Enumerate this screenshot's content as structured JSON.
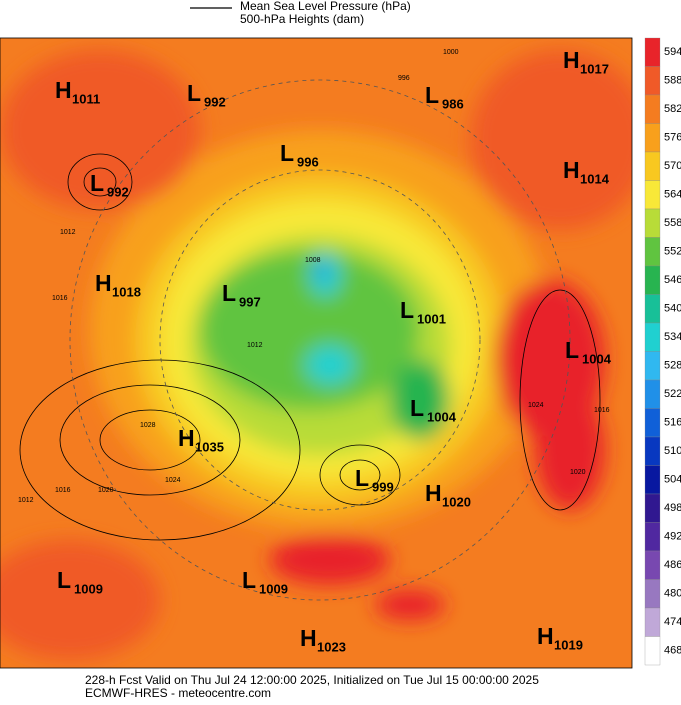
{
  "legend": {
    "line_label": "Mean Sea Level Pressure (hPa)",
    "fill_label": "500-hPa Heights (dam)"
  },
  "centers": [
    {
      "letter": "H",
      "value": 1017
    },
    {
      "letter": "H",
      "value": 1011
    },
    {
      "letter": "L",
      "value": 992
    },
    {
      "letter": "L",
      "value": 986
    },
    {
      "letter": "L",
      "value": 996
    },
    {
      "letter": "L",
      "value": 992
    },
    {
      "letter": "H",
      "value": 1014
    },
    {
      "letter": "H",
      "value": 1018
    },
    {
      "letter": "L",
      "value": 997
    },
    {
      "letter": "L",
      "value": 1001
    },
    {
      "letter": "L",
      "value": 1004
    },
    {
      "letter": "H",
      "value": 1035
    },
    {
      "letter": "L",
      "value": 1004
    },
    {
      "letter": "L",
      "value": 999
    },
    {
      "letter": "H",
      "value": 1020
    },
    {
      "letter": "L",
      "value": 1009
    },
    {
      "letter": "L",
      "value": 1009
    },
    {
      "letter": "H",
      "value": 1023
    },
    {
      "letter": "H",
      "value": 1019
    }
  ],
  "contour_labels": [
    1000,
    996,
    1012,
    1016,
    1028,
    1024,
    1020,
    1012,
    1016,
    1024,
    1016,
    1020,
    1008,
    1012
  ],
  "colorbar": {
    "ticks": [
      594,
      588,
      582,
      576,
      570,
      564,
      558,
      552,
      546,
      540,
      534,
      528,
      522,
      516,
      510,
      504,
      498,
      492,
      486,
      480,
      474,
      468
    ],
    "colors": [
      "#e8242a",
      "#f05a28",
      "#f47c20",
      "#f8a01c",
      "#f8c820",
      "#f8e838",
      "#b8dc38",
      "#60c440",
      "#28b450",
      "#18c098",
      "#20d0d0",
      "#30b8f0",
      "#2090e8",
      "#1060d8",
      "#0838c0",
      "#0818a0",
      "#301890",
      "#5028a0",
      "#7848b0",
      "#9878c0",
      "#c0a8d8",
      "#ffffff"
    ]
  },
  "footer": {
    "line1": "228-h Fcst Valid on Thu Jul 24 12:00:00 2025, Initialized on Tue Jul 15 00:00:00 2025",
    "line2": "ECMWF-HRES - meteocentre.com"
  }
}
